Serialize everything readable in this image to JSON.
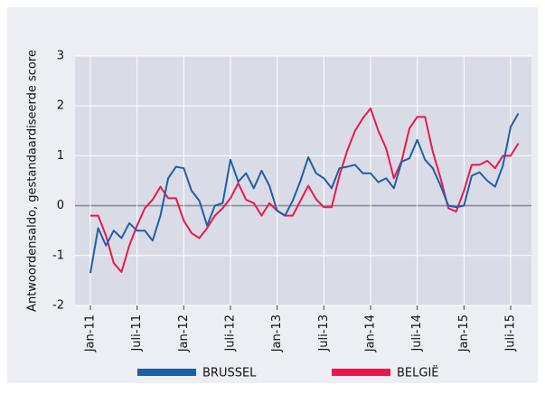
{
  "chart_data": {
    "type": "line",
    "y_label": "Antwoordensaldo, gestandaardiseerde score",
    "categories": [
      "Jan-11",
      null,
      null,
      null,
      null,
      null,
      "Juli-11",
      null,
      null,
      null,
      null,
      null,
      "Jan-12",
      null,
      null,
      null,
      null,
      null,
      "Juli-12",
      null,
      null,
      null,
      null,
      null,
      "Jan-13",
      null,
      null,
      null,
      null,
      null,
      "Juli-13",
      null,
      null,
      null,
      null,
      null,
      "Jan-14",
      null,
      null,
      null,
      null,
      null,
      "Juli-14",
      null,
      null,
      null,
      null,
      null,
      "Jan-15",
      null,
      null,
      null,
      null,
      null,
      "Juli-15",
      null
    ],
    "series": [
      {
        "name": "BRUSSEL",
        "color": "#1f5fa6",
        "values": [
          -1.35,
          -0.45,
          -0.8,
          -0.5,
          -0.65,
          -0.35,
          -0.5,
          -0.5,
          -0.7,
          -0.2,
          0.55,
          0.78,
          0.75,
          0.3,
          0.1,
          -0.4,
          0.0,
          0.05,
          0.92,
          0.48,
          0.65,
          0.35,
          0.7,
          0.4,
          -0.1,
          -0.2,
          0.1,
          0.5,
          0.97,
          0.65,
          0.55,
          0.35,
          0.75,
          0.78,
          0.82,
          0.65,
          0.65,
          0.47,
          0.55,
          0.35,
          0.88,
          0.95,
          1.32,
          0.92,
          0.75,
          0.4,
          0.0,
          -0.03,
          0.0,
          0.6,
          0.67,
          0.5,
          0.38,
          0.8,
          1.58,
          1.85
        ]
      },
      {
        "name": "BELGIË",
        "color": "#e8194a",
        "values": [
          -0.2,
          -0.2,
          -0.6,
          -1.15,
          -1.33,
          -0.8,
          -0.4,
          -0.05,
          0.12,
          0.38,
          0.15,
          0.15,
          -0.3,
          -0.55,
          -0.65,
          -0.45,
          -0.2,
          -0.05,
          0.15,
          0.45,
          0.12,
          0.05,
          -0.2,
          0.05,
          -0.1,
          -0.2,
          -0.2,
          0.1,
          0.4,
          0.13,
          -0.03,
          -0.03,
          0.6,
          1.1,
          1.5,
          1.75,
          1.95,
          1.5,
          1.15,
          0.55,
          0.9,
          1.55,
          1.78,
          1.78,
          1.08,
          0.55,
          -0.05,
          -0.12,
          0.3,
          0.82,
          0.82,
          0.9,
          0.75,
          1.0,
          1.0,
          1.25
        ]
      }
    ],
    "ylim": [
      -2,
      3
    ],
    "yticks": [
      -2,
      -1,
      0,
      1,
      2,
      3
    ],
    "grid": true
  }
}
